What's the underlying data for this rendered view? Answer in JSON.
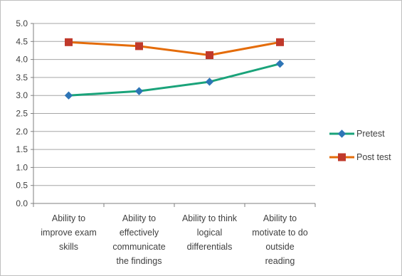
{
  "chart_data": {
    "type": "line",
    "title": "",
    "xlabel": "",
    "ylabel": "",
    "categories": [
      [
        "Ability to",
        "improve exam",
        "skills"
      ],
      [
        "Ability to",
        "effectively",
        "communicate",
        "the findings"
      ],
      [
        "Ability to think",
        "logical",
        "differentials"
      ],
      [
        "Ability to",
        "motivate to do",
        "outside",
        "reading"
      ]
    ],
    "ylim": [
      0,
      5
    ],
    "yticks": [
      "0.0",
      "0.5",
      "1.0",
      "1.5",
      "2.0",
      "2.5",
      "3.0",
      "3.5",
      "4.0",
      "4.5",
      "5.0"
    ],
    "grid": true,
    "legend_position": "right",
    "series": [
      {
        "name": "Pretest",
        "values": [
          3.0,
          3.12,
          3.38,
          3.88
        ],
        "color": "#1aa37a",
        "marker_color": "#2e75b6",
        "marker": "diamond"
      },
      {
        "name": "Post test",
        "values": [
          4.48,
          4.37,
          4.12,
          4.48
        ],
        "color": "#e46c0a",
        "marker_color": "#c0392b",
        "marker": "square"
      }
    ]
  }
}
